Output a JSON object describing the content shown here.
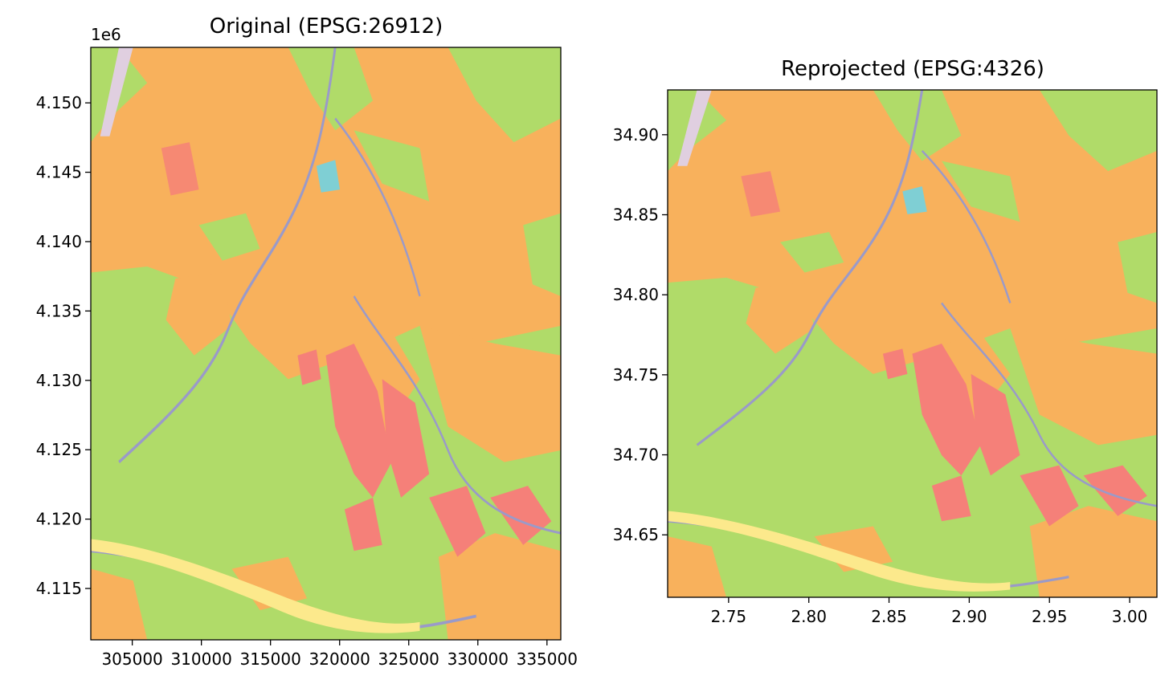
{
  "chart_data": [
    {
      "type": "heatmap",
      "title": "Original (EPSG:26912)",
      "xlabel": "",
      "ylabel": "",
      "offset_label": "1e6",
      "xlim": [
        302000,
        336000
      ],
      "ylim": [
        4111300,
        4154000
      ],
      "xticks": [
        305000,
        310000,
        315000,
        320000,
        325000,
        330000,
        335000
      ],
      "xtick_labels": [
        "305000",
        "310000",
        "315000",
        "320000",
        "325000",
        "330000",
        "335000"
      ],
      "yticks": [
        4.115,
        4.12,
        4.125,
        4.13,
        4.135,
        4.14,
        4.145,
        4.15
      ],
      "ytick_labels": [
        "4.115",
        "4.120",
        "4.125",
        "4.130",
        "4.135",
        "4.140",
        "4.145",
        "4.150"
      ],
      "description_colors": {
        "background": "#f8b15c",
        "vegetation": "#b0db69",
        "bare": "#f58079",
        "streams": "#9a9ac9",
        "water": "#7fcfd4",
        "urban": "#e0cfe0",
        "sand": "#fce98c"
      }
    },
    {
      "type": "heatmap",
      "title": "Reprojected (EPSG:4326)",
      "xlabel": "",
      "ylabel": "",
      "xlim": [
        2.712,
        3.017
      ],
      "ylim": [
        34.611,
        34.928
      ],
      "xticks": [
        2.75,
        2.8,
        2.85,
        2.9,
        2.95,
        3.0
      ],
      "xtick_labels": [
        "2.75",
        "2.80",
        "2.85",
        "2.90",
        "2.95",
        "3.00"
      ],
      "yticks": [
        34.65,
        34.7,
        34.75,
        34.8,
        34.85,
        34.9
      ],
      "ytick_labels": [
        "34.65",
        "34.70",
        "34.75",
        "34.80",
        "34.85",
        "34.90"
      ]
    }
  ]
}
